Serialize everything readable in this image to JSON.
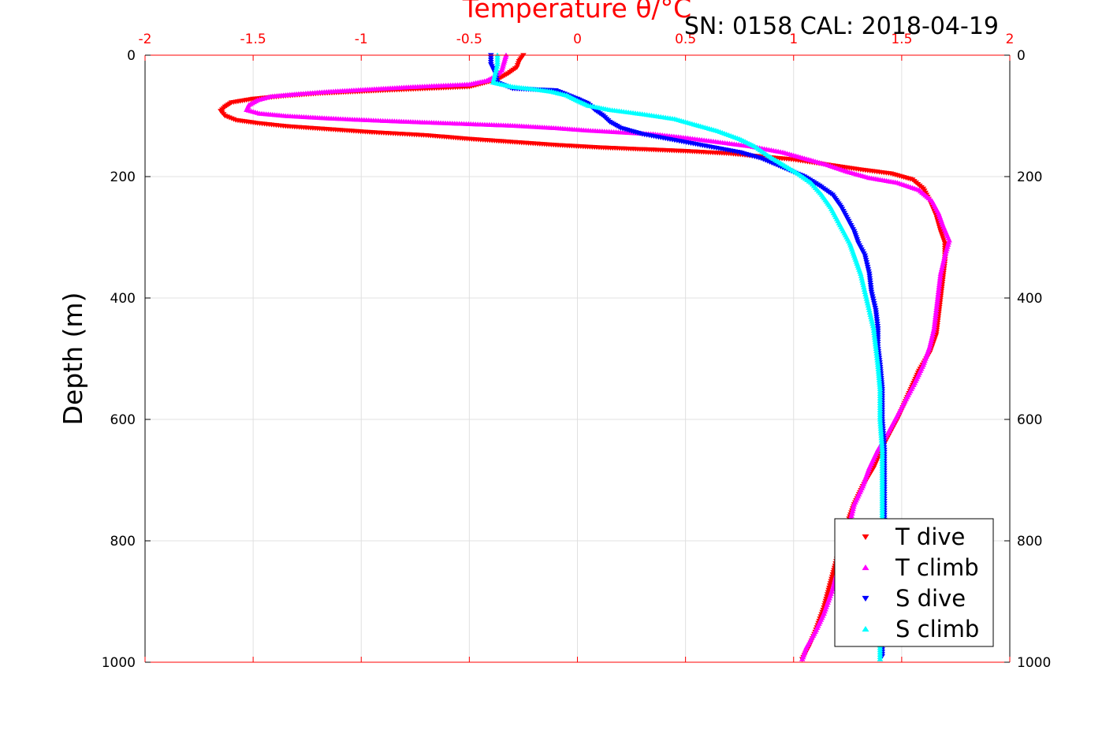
{
  "chart_data": {
    "type": "scatter",
    "title": "",
    "annotation": "SN: 0158  CAL: 2018-04-19",
    "xlabel": "Temperature θ/°C",
    "ylabel": "Depth (m)",
    "xlim": [
      -2,
      2
    ],
    "ylim": [
      0,
      1000
    ],
    "y_inverted": true,
    "x_axis_position": "top",
    "x_ticks": [
      -2,
      -1.5,
      -1,
      -0.5,
      0,
      0.5,
      1,
      1.5,
      2
    ],
    "y_ticks": [
      0,
      200,
      400,
      600,
      800,
      1000
    ],
    "grid": true,
    "legend_position": "bottom-right",
    "series": [
      {
        "name": "T dive",
        "color": "#ff0000",
        "marker": "triangle-down",
        "points": [
          [
            -0.25,
            0
          ],
          [
            -0.27,
            10
          ],
          [
            -0.28,
            20
          ],
          [
            -0.32,
            30
          ],
          [
            -0.37,
            40
          ],
          [
            -0.5,
            52
          ],
          [
            -0.9,
            58
          ],
          [
            -1.2,
            63
          ],
          [
            -1.35,
            67
          ],
          [
            -1.5,
            72
          ],
          [
            -1.6,
            78
          ],
          [
            -1.63,
            85
          ],
          [
            -1.65,
            92
          ],
          [
            -1.63,
            100
          ],
          [
            -1.58,
            107
          ],
          [
            -1.48,
            112
          ],
          [
            -1.35,
            117
          ],
          [
            -1.15,
            122
          ],
          [
            -0.95,
            127
          ],
          [
            -0.7,
            132
          ],
          [
            -0.5,
            138
          ],
          [
            -0.3,
            143
          ],
          [
            -0.1,
            148
          ],
          [
            0.1,
            152
          ],
          [
            0.3,
            155
          ],
          [
            0.5,
            158
          ],
          [
            0.7,
            162
          ],
          [
            0.85,
            167
          ],
          [
            1.0,
            172
          ],
          [
            1.15,
            180
          ],
          [
            1.3,
            188
          ],
          [
            1.45,
            195
          ],
          [
            1.55,
            205
          ],
          [
            1.6,
            220
          ],
          [
            1.63,
            240
          ],
          [
            1.66,
            265
          ],
          [
            1.68,
            290
          ],
          [
            1.7,
            310
          ],
          [
            1.7,
            340
          ],
          [
            1.69,
            370
          ],
          [
            1.68,
            400
          ],
          [
            1.67,
            430
          ],
          [
            1.66,
            460
          ],
          [
            1.63,
            490
          ],
          [
            1.58,
            520
          ],
          [
            1.53,
            560
          ],
          [
            1.48,
            600
          ],
          [
            1.42,
            640
          ],
          [
            1.37,
            680
          ],
          [
            1.32,
            710
          ],
          [
            1.28,
            740
          ],
          [
            1.25,
            770
          ],
          [
            1.22,
            800
          ],
          [
            1.2,
            830
          ],
          [
            1.17,
            870
          ],
          [
            1.14,
            910
          ],
          [
            1.1,
            950
          ],
          [
            1.07,
            975
          ],
          [
            1.04,
            995
          ]
        ]
      },
      {
        "name": "T climb",
        "color": "#ff00ff",
        "marker": "triangle-up",
        "points": [
          [
            -0.33,
            0
          ],
          [
            -0.34,
            12
          ],
          [
            -0.35,
            25
          ],
          [
            -0.38,
            35
          ],
          [
            -0.42,
            42
          ],
          [
            -0.5,
            48
          ],
          [
            -0.75,
            52
          ],
          [
            -0.95,
            56
          ],
          [
            -1.15,
            60
          ],
          [
            -1.3,
            64
          ],
          [
            -1.42,
            68
          ],
          [
            -1.48,
            74
          ],
          [
            -1.52,
            82
          ],
          [
            -1.53,
            90
          ],
          [
            -1.47,
            96
          ],
          [
            -1.35,
            100
          ],
          [
            -1.15,
            104
          ],
          [
            -0.9,
            108
          ],
          [
            -0.6,
            112
          ],
          [
            -0.3,
            116
          ],
          [
            -0.1,
            120
          ],
          [
            0.05,
            124
          ],
          [
            0.2,
            127
          ],
          [
            0.35,
            130
          ],
          [
            0.5,
            136
          ],
          [
            0.65,
            143
          ],
          [
            0.8,
            150
          ],
          [
            0.95,
            160
          ],
          [
            1.05,
            170
          ],
          [
            1.15,
            180
          ],
          [
            1.25,
            192
          ],
          [
            1.35,
            202
          ],
          [
            1.48,
            210
          ],
          [
            1.58,
            222
          ],
          [
            1.64,
            240
          ],
          [
            1.67,
            260
          ],
          [
            1.69,
            280
          ],
          [
            1.72,
            305
          ],
          [
            1.7,
            330
          ],
          [
            1.68,
            360
          ],
          [
            1.67,
            390
          ],
          [
            1.66,
            420
          ],
          [
            1.65,
            450
          ],
          [
            1.63,
            480
          ],
          [
            1.6,
            510
          ],
          [
            1.56,
            540
          ],
          [
            1.5,
            580
          ],
          [
            1.44,
            620
          ],
          [
            1.39,
            650
          ],
          [
            1.35,
            680
          ],
          [
            1.32,
            710
          ],
          [
            1.28,
            740
          ],
          [
            1.26,
            770
          ],
          [
            1.24,
            800
          ],
          [
            1.21,
            840
          ],
          [
            1.18,
            880
          ],
          [
            1.14,
            920
          ],
          [
            1.1,
            950
          ],
          [
            1.06,
            975
          ],
          [
            1.04,
            995
          ]
        ]
      },
      {
        "name": "S dive",
        "color": "#0000ff",
        "marker": "triangle-down",
        "points": [
          [
            -0.4,
            0
          ],
          [
            -0.4,
            15
          ],
          [
            -0.38,
            30
          ],
          [
            -0.37,
            45
          ],
          [
            -0.3,
            55
          ],
          [
            -0.1,
            58
          ],
          [
            -0.05,
            65
          ],
          [
            0.0,
            72
          ],
          [
            0.05,
            80
          ],
          [
            0.08,
            90
          ],
          [
            0.12,
            100
          ],
          [
            0.15,
            110
          ],
          [
            0.2,
            120
          ],
          [
            0.3,
            130
          ],
          [
            0.45,
            140
          ],
          [
            0.6,
            150
          ],
          [
            0.75,
            160
          ],
          [
            0.85,
            170
          ],
          [
            0.95,
            185
          ],
          [
            1.05,
            200
          ],
          [
            1.12,
            215
          ],
          [
            1.18,
            230
          ],
          [
            1.22,
            250
          ],
          [
            1.25,
            270
          ],
          [
            1.28,
            290
          ],
          [
            1.3,
            310
          ],
          [
            1.33,
            330
          ],
          [
            1.35,
            360
          ],
          [
            1.36,
            390
          ],
          [
            1.38,
            420
          ],
          [
            1.39,
            450
          ],
          [
            1.39,
            480
          ],
          [
            1.4,
            510
          ],
          [
            1.41,
            550
          ],
          [
            1.41,
            600
          ],
          [
            1.42,
            650
          ],
          [
            1.42,
            700
          ],
          [
            1.42,
            750
          ],
          [
            1.42,
            800
          ],
          [
            1.42,
            850
          ],
          [
            1.41,
            900
          ],
          [
            1.41,
            950
          ],
          [
            1.41,
            990
          ]
        ]
      },
      {
        "name": "S climb",
        "color": "#00ffff",
        "marker": "triangle-up",
        "points": [
          [
            -0.37,
            0
          ],
          [
            -0.37,
            15
          ],
          [
            -0.38,
            30
          ],
          [
            -0.39,
            45
          ],
          [
            -0.3,
            52
          ],
          [
            -0.2,
            56
          ],
          [
            -0.12,
            60
          ],
          [
            -0.05,
            66
          ],
          [
            0.0,
            75
          ],
          [
            0.05,
            83
          ],
          [
            0.15,
            90
          ],
          [
            0.3,
            97
          ],
          [
            0.45,
            105
          ],
          [
            0.55,
            115
          ],
          [
            0.65,
            125
          ],
          [
            0.75,
            138
          ],
          [
            0.82,
            150
          ],
          [
            0.88,
            165
          ],
          [
            0.95,
            180
          ],
          [
            1.02,
            195
          ],
          [
            1.08,
            210
          ],
          [
            1.13,
            230
          ],
          [
            1.17,
            250
          ],
          [
            1.2,
            270
          ],
          [
            1.23,
            290
          ],
          [
            1.26,
            310
          ],
          [
            1.28,
            330
          ],
          [
            1.31,
            360
          ],
          [
            1.33,
            390
          ],
          [
            1.35,
            420
          ],
          [
            1.37,
            450
          ],
          [
            1.38,
            480
          ],
          [
            1.39,
            510
          ],
          [
            1.4,
            550
          ],
          [
            1.4,
            600
          ],
          [
            1.41,
            650
          ],
          [
            1.41,
            700
          ],
          [
            1.41,
            750
          ],
          [
            1.41,
            800
          ],
          [
            1.41,
            850
          ],
          [
            1.41,
            900
          ],
          [
            1.4,
            950
          ],
          [
            1.4,
            995
          ]
        ]
      }
    ]
  }
}
